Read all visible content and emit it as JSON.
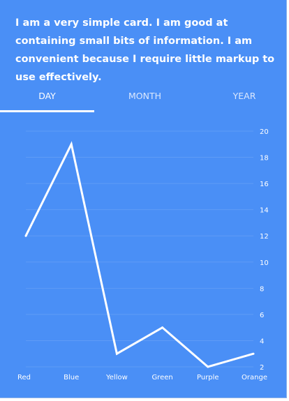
{
  "card": {
    "text": "I am a very simple card. I am good at containing small bits of information. I am convenient because I require little markup to use effectively."
  },
  "tabs": [
    {
      "label": "DAY",
      "active": true
    },
    {
      "label": "MONTH",
      "active": false
    },
    {
      "label": "YEAR",
      "active": false
    }
  ],
  "colors": {
    "card_bg": "#4a8ff6",
    "line": "#ffffff",
    "grid": "#5f9cf6"
  },
  "chart_data": {
    "type": "line",
    "categories": [
      "Red",
      "Blue",
      "Yellow",
      "Green",
      "Purple",
      "Orange"
    ],
    "values": [
      12,
      19,
      3,
      5,
      2,
      3
    ],
    "ylim": [
      2,
      20
    ],
    "yticks": [
      2,
      4,
      6,
      8,
      10,
      12,
      14,
      16,
      18,
      20
    ],
    "grid": true,
    "y_axis_position": "right",
    "legend": "none"
  }
}
